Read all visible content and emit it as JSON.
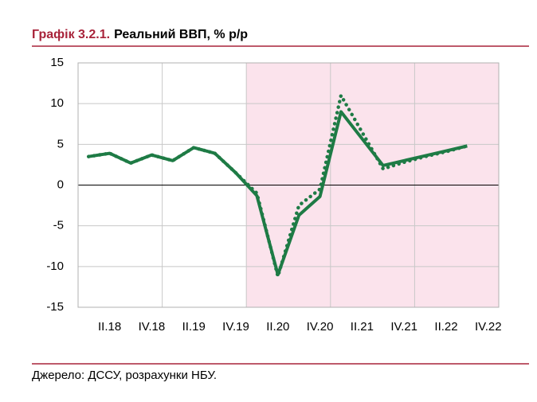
{
  "chart_data": {
    "type": "line",
    "title_prefix": "Графік 3.2.1.",
    "title": "Реальний ВВП, % р/р",
    "source": "Джерело: ДССУ, розрахунки НБУ.",
    "categories": [
      null,
      "II.18",
      null,
      "IV.18",
      null,
      "II.19",
      null,
      "IV.19",
      null,
      "II.20",
      null,
      "IV.20",
      null,
      "II.21",
      null,
      "IV.21",
      null,
      "II.22",
      null,
      "IV.22"
    ],
    "series": [
      {
        "color": "#1e7b45",
        "style": "solid",
        "values": [
          3.5,
          3.9,
          2.7,
          3.7,
          3.0,
          4.6,
          3.9,
          1.5,
          -1.3,
          -11.0,
          -3.7,
          -1.4,
          9.0,
          5.7,
          2.4,
          3.0,
          3.6,
          4.2,
          4.8,
          null
        ]
      },
      {
        "color": "#1e7b45",
        "style": "dotted",
        "values": [
          3.5,
          3.9,
          2.7,
          3.7,
          3.0,
          4.6,
          3.9,
          1.5,
          -1.0,
          -11.2,
          -2.5,
          -0.5,
          11.0,
          6.5,
          2.0,
          2.8,
          3.5,
          4.1,
          4.8,
          null
        ]
      }
    ],
    "ylim": [
      -15,
      15
    ],
    "yticks": [
      -15,
      -10,
      -5,
      0,
      5,
      10,
      15
    ],
    "grid": true,
    "shade": {
      "start": 8,
      "color": "#fbe3ec"
    }
  }
}
